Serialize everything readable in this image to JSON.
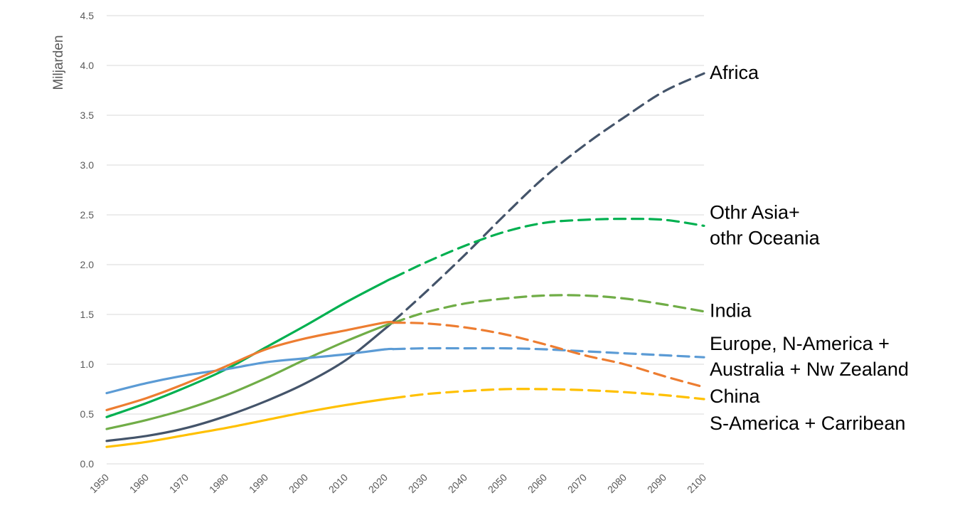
{
  "chart_data": {
    "type": "line",
    "title": "",
    "xlabel": "",
    "ylabel": "Miljarden",
    "xlim": [
      1950,
      2100
    ],
    "ylim": [
      0,
      4.5
    ],
    "x_ticks": [
      "1950",
      "1960",
      "1970",
      "1980",
      "1990",
      "2000",
      "2010",
      "2020",
      "2030",
      "2040",
      "2050",
      "2060",
      "2070",
      "2080",
      "2090",
      "2100"
    ],
    "y_ticks": [
      "0.0",
      "0.5",
      "1.0",
      "1.5",
      "2.0",
      "2.5",
      "3.0",
      "3.5",
      "4.0",
      "4.5"
    ],
    "grid": "horizontal",
    "legend": "none (labels at right end of lines)",
    "projection_start": 2022,
    "historical_style": "solid",
    "projection_style": "dashed",
    "series": [
      {
        "name": "Africa",
        "label_lines": [
          "Africa"
        ],
        "color": "#44546a",
        "points": [
          [
            1950,
            0.23
          ],
          [
            1960,
            0.28
          ],
          [
            1970,
            0.36
          ],
          [
            1980,
            0.48
          ],
          [
            1990,
            0.63
          ],
          [
            2000,
            0.81
          ],
          [
            2010,
            1.04
          ],
          [
            2020,
            1.36
          ],
          [
            2030,
            1.72
          ],
          [
            2040,
            2.1
          ],
          [
            2050,
            2.5
          ],
          [
            2060,
            2.88
          ],
          [
            2070,
            3.2
          ],
          [
            2080,
            3.48
          ],
          [
            2090,
            3.74
          ],
          [
            2100,
            3.92
          ]
        ]
      },
      {
        "name": "Othr Asia+ othr Oceania",
        "label_lines": [
          "Othr Asia+",
          "othr Oceania"
        ],
        "color": "#00b050",
        "points": [
          [
            1950,
            0.47
          ],
          [
            1960,
            0.61
          ],
          [
            1970,
            0.77
          ],
          [
            1980,
            0.95
          ],
          [
            1990,
            1.17
          ],
          [
            2000,
            1.39
          ],
          [
            2010,
            1.62
          ],
          [
            2020,
            1.83
          ],
          [
            2030,
            2.02
          ],
          [
            2040,
            2.19
          ],
          [
            2050,
            2.33
          ],
          [
            2060,
            2.42
          ],
          [
            2070,
            2.45
          ],
          [
            2080,
            2.46
          ],
          [
            2090,
            2.45
          ],
          [
            2100,
            2.39
          ]
        ]
      },
      {
        "name": "India",
        "label_lines": [
          "India"
        ],
        "color": "#70ad47",
        "points": [
          [
            1950,
            0.35
          ],
          [
            1960,
            0.44
          ],
          [
            1970,
            0.55
          ],
          [
            1980,
            0.69
          ],
          [
            1990,
            0.86
          ],
          [
            2000,
            1.05
          ],
          [
            2010,
            1.23
          ],
          [
            2020,
            1.39
          ],
          [
            2030,
            1.52
          ],
          [
            2040,
            1.61
          ],
          [
            2050,
            1.66
          ],
          [
            2060,
            1.69
          ],
          [
            2070,
            1.69
          ],
          [
            2080,
            1.66
          ],
          [
            2090,
            1.6
          ],
          [
            2100,
            1.53
          ]
        ]
      },
      {
        "name": "Europe, N-America + Australia + Nw Zealand",
        "label_lines": [
          "Europe, N-America +",
          "Australia + Nw Zealand"
        ],
        "color": "#5b9bd5",
        "points": [
          [
            1950,
            0.71
          ],
          [
            1960,
            0.81
          ],
          [
            1970,
            0.89
          ],
          [
            1980,
            0.95
          ],
          [
            1990,
            1.02
          ],
          [
            2000,
            1.06
          ],
          [
            2010,
            1.1
          ],
          [
            2020,
            1.15
          ],
          [
            2030,
            1.16
          ],
          [
            2040,
            1.16
          ],
          [
            2050,
            1.16
          ],
          [
            2060,
            1.15
          ],
          [
            2070,
            1.13
          ],
          [
            2080,
            1.11
          ],
          [
            2090,
            1.09
          ],
          [
            2100,
            1.07
          ]
        ]
      },
      {
        "name": "China",
        "label_lines": [
          "China"
        ],
        "color": "#ed7d31",
        "points": [
          [
            1950,
            0.54
          ],
          [
            1960,
            0.66
          ],
          [
            1970,
            0.81
          ],
          [
            1980,
            0.98
          ],
          [
            1990,
            1.15
          ],
          [
            2000,
            1.26
          ],
          [
            2010,
            1.34
          ],
          [
            2020,
            1.42
          ],
          [
            2030,
            1.41
          ],
          [
            2040,
            1.37
          ],
          [
            2050,
            1.3
          ],
          [
            2060,
            1.2
          ],
          [
            2070,
            1.09
          ],
          [
            2080,
            1.0
          ],
          [
            2090,
            0.88
          ],
          [
            2100,
            0.77
          ]
        ]
      },
      {
        "name": "S-America + Carribean",
        "label_lines": [
          "S-America + Carribean"
        ],
        "color": "#ffc000",
        "points": [
          [
            1950,
            0.17
          ],
          [
            1960,
            0.22
          ],
          [
            1970,
            0.29
          ],
          [
            1980,
            0.36
          ],
          [
            1990,
            0.44
          ],
          [
            2000,
            0.52
          ],
          [
            2010,
            0.59
          ],
          [
            2020,
            0.65
          ],
          [
            2030,
            0.7
          ],
          [
            2040,
            0.73
          ],
          [
            2050,
            0.75
          ],
          [
            2060,
            0.75
          ],
          [
            2070,
            0.74
          ],
          [
            2080,
            0.72
          ],
          [
            2090,
            0.69
          ],
          [
            2100,
            0.65
          ]
        ]
      }
    ]
  }
}
